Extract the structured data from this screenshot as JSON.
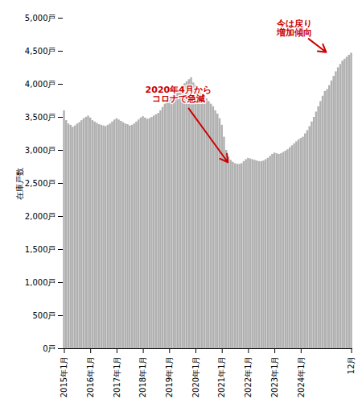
{
  "chart_data": {
    "type": "bar",
    "ylabel": "在庫戸数",
    "color": "#b0b0b0",
    "categories": [
      "2015年1月",
      null,
      null,
      null,
      null,
      null,
      null,
      null,
      null,
      null,
      null,
      null,
      "2016年1月",
      null,
      null,
      null,
      null,
      null,
      null,
      null,
      null,
      null,
      null,
      null,
      "2017年1月",
      null,
      null,
      null,
      null,
      null,
      null,
      null,
      null,
      null,
      null,
      null,
      "2018年1月",
      null,
      null,
      null,
      null,
      null,
      null,
      null,
      null,
      null,
      null,
      null,
      "2019年1月",
      null,
      null,
      null,
      null,
      null,
      null,
      null,
      null,
      null,
      null,
      null,
      "2020年1月",
      null,
      null,
      null,
      null,
      null,
      null,
      null,
      null,
      null,
      null,
      null,
      "2021年1月",
      null,
      null,
      null,
      null,
      null,
      null,
      null,
      null,
      null,
      null,
      null,
      "2022年1月",
      null,
      null,
      null,
      null,
      null,
      null,
      null,
      null,
      null,
      null,
      null,
      "2023年1月",
      null,
      null,
      null,
      null,
      null,
      null,
      null,
      null,
      null,
      null,
      null,
      "2024年1月",
      null,
      null,
      null,
      null,
      null,
      null,
      null,
      null,
      null,
      null,
      null,
      null,
      null,
      null,
      null,
      null,
      null,
      null,
      null,
      null,
      null,
      null,
      "12月"
    ],
    "values": [
      3600,
      3450,
      3400,
      3380,
      3350,
      3370,
      3400,
      3420,
      3450,
      3480,
      3500,
      3520,
      3490,
      3450,
      3430,
      3410,
      3390,
      3380,
      3370,
      3360,
      3380,
      3400,
      3430,
      3460,
      3480,
      3460,
      3440,
      3420,
      3400,
      3390,
      3370,
      3380,
      3400,
      3430,
      3460,
      3490,
      3510,
      3490,
      3470,
      3480,
      3500,
      3520,
      3540,
      3560,
      3600,
      3650,
      3700,
      3740,
      3760,
      3800,
      3840,
      3870,
      3900,
      3940,
      3980,
      4010,
      4040,
      4070,
      4100,
      4020,
      3980,
      3940,
      3900,
      3860,
      3820,
      3780,
      3740,
      3700,
      3660,
      3600,
      3550,
      3480,
      3380,
      3200,
      3000,
      2900,
      2850,
      2820,
      2800,
      2790,
      2790,
      2800,
      2830,
      2860,
      2880,
      2870,
      2860,
      2850,
      2840,
      2830,
      2830,
      2840,
      2860,
      2880,
      2910,
      2940,
      2960,
      2950,
      2940,
      2950,
      2970,
      2990,
      3010,
      3040,
      3070,
      3100,
      3130,
      3160,
      3180,
      3200,
      3250,
      3300,
      3360,
      3430,
      3500,
      3580,
      3660,
      3740,
      3820,
      3890,
      3920,
      3980,
      4050,
      4120,
      4190,
      4250,
      4300,
      4350,
      4380,
      4410,
      4440,
      4470
    ],
    "ylim": [
      0,
      5000
    ],
    "yticks": [
      {
        "value": 0,
        "label": "0戸"
      },
      {
        "value": 500,
        "label": "500戸"
      },
      {
        "value": 1000,
        "label": "1,000戸"
      },
      {
        "value": 1500,
        "label": "1,500戸"
      },
      {
        "value": 2000,
        "label": "2,000戸"
      },
      {
        "value": 2500,
        "label": "2,500戸"
      },
      {
        "value": 3000,
        "label": "3,000戸"
      },
      {
        "value": 3500,
        "label": "3,500戸"
      },
      {
        "value": 4000,
        "label": "4,000戸"
      },
      {
        "value": 4500,
        "label": "4,500戸"
      },
      {
        "value": 5000,
        "label": "5,000戸"
      }
    ],
    "grid": false,
    "annotations": [
      {
        "text": "2020年4月から\nコロナで急減",
        "color": "#cc0000",
        "x": 75,
        "y": 2800,
        "text_x": 52,
        "text_y": 3850
      },
      {
        "text": "今は戻り\n増加傾向",
        "color": "#cc0000",
        "x": 120,
        "y": 4470,
        "text_x": 105,
        "text_y": 4850
      }
    ]
  }
}
